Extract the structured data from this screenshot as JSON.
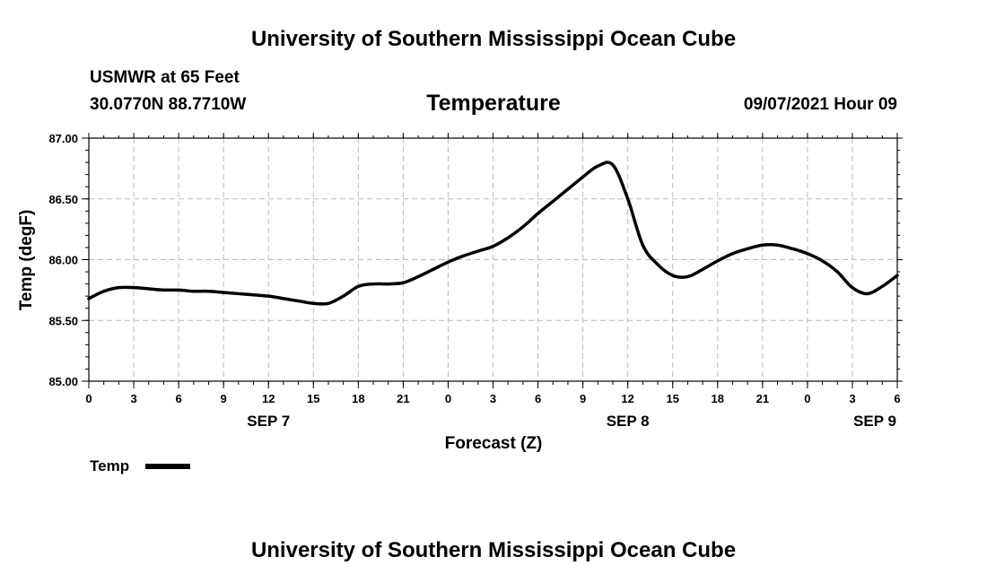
{
  "header": {
    "title": "University of Southern Mississippi Ocean Cube",
    "station": "USMWR at 65 Feet",
    "coords": "30.0770N  88.7710W",
    "datetime": "09/07/2021 Hour 09"
  },
  "footer": {
    "title": "University of Southern Mississippi Ocean Cube"
  },
  "legend": {
    "label": "Temp"
  },
  "colors": {
    "line": "#000000",
    "grid": "#bbbbbb"
  },
  "chart_data": {
    "type": "line",
    "title": "Temperature",
    "xlabel": "Forecast (Z)",
    "ylabel": "Temp (degF)",
    "xlim": [
      0,
      54
    ],
    "ylim": [
      85.0,
      87.0
    ],
    "yticks": [
      "85.00",
      "85.50",
      "86.00",
      "86.50",
      "87.00"
    ],
    "xticks": [
      "0",
      "3",
      "6",
      "9",
      "12",
      "15",
      "18",
      "21",
      "0",
      "3",
      "6",
      "9",
      "12",
      "15",
      "18",
      "21",
      "0",
      "3",
      "6"
    ],
    "date_labels": [
      {
        "hour": 12,
        "label": "SEP 7"
      },
      {
        "hour": 36,
        "label": "SEP 8"
      },
      {
        "hour": 52.5,
        "label": "SEP 9"
      }
    ],
    "grid": true,
    "series": [
      {
        "name": "Temp",
        "x": [
          0,
          1,
          2,
          3,
          4,
          5,
          6,
          7,
          8,
          9,
          10,
          11,
          12,
          13,
          14,
          15,
          16,
          17,
          18,
          19,
          20,
          21,
          22,
          23,
          24,
          25,
          26,
          27,
          28,
          29,
          30,
          31,
          32,
          33,
          34,
          35,
          36,
          37,
          38,
          39,
          40,
          41,
          42,
          43,
          44,
          45,
          46,
          47,
          48,
          49,
          50,
          51,
          52,
          53,
          54
        ],
        "values": [
          85.68,
          85.74,
          85.77,
          85.77,
          85.76,
          85.75,
          85.75,
          85.74,
          85.74,
          85.73,
          85.72,
          85.71,
          85.7,
          85.68,
          85.66,
          85.64,
          85.64,
          85.7,
          85.78,
          85.8,
          85.8,
          85.81,
          85.86,
          85.92,
          85.98,
          86.03,
          86.07,
          86.11,
          86.18,
          86.27,
          86.38,
          86.48,
          86.58,
          86.68,
          86.77,
          86.78,
          86.5,
          86.12,
          85.96,
          85.87,
          85.86,
          85.92,
          85.99,
          86.05,
          86.09,
          86.12,
          86.12,
          86.09,
          86.05,
          85.99,
          85.9,
          85.77,
          85.72,
          85.78,
          85.87
        ]
      }
    ]
  }
}
